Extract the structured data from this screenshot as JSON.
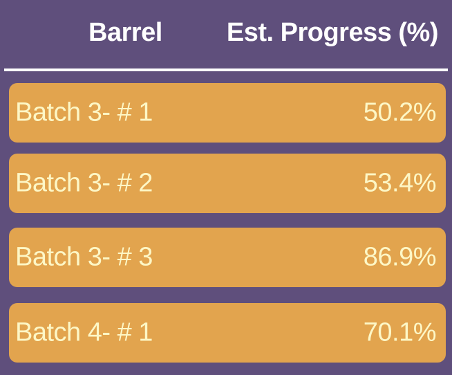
{
  "table": {
    "headers": {
      "barrel": "Barrel",
      "progress": "Est. Progress (%)"
    },
    "rows": [
      {
        "barrel": "Batch 3- # 1",
        "progress": "50.2%"
      },
      {
        "barrel": "Batch 3- # 2",
        "progress": "53.4%"
      },
      {
        "barrel": "Batch 3- # 3",
        "progress": "86.9%"
      },
      {
        "barrel": "Batch 4- # 1",
        "progress": "70.1%"
      }
    ]
  },
  "colors": {
    "background": "#5f4f7c",
    "row_fill": "#e2a44e",
    "row_text": "#fdf7c6",
    "header_text": "#ffffff"
  }
}
